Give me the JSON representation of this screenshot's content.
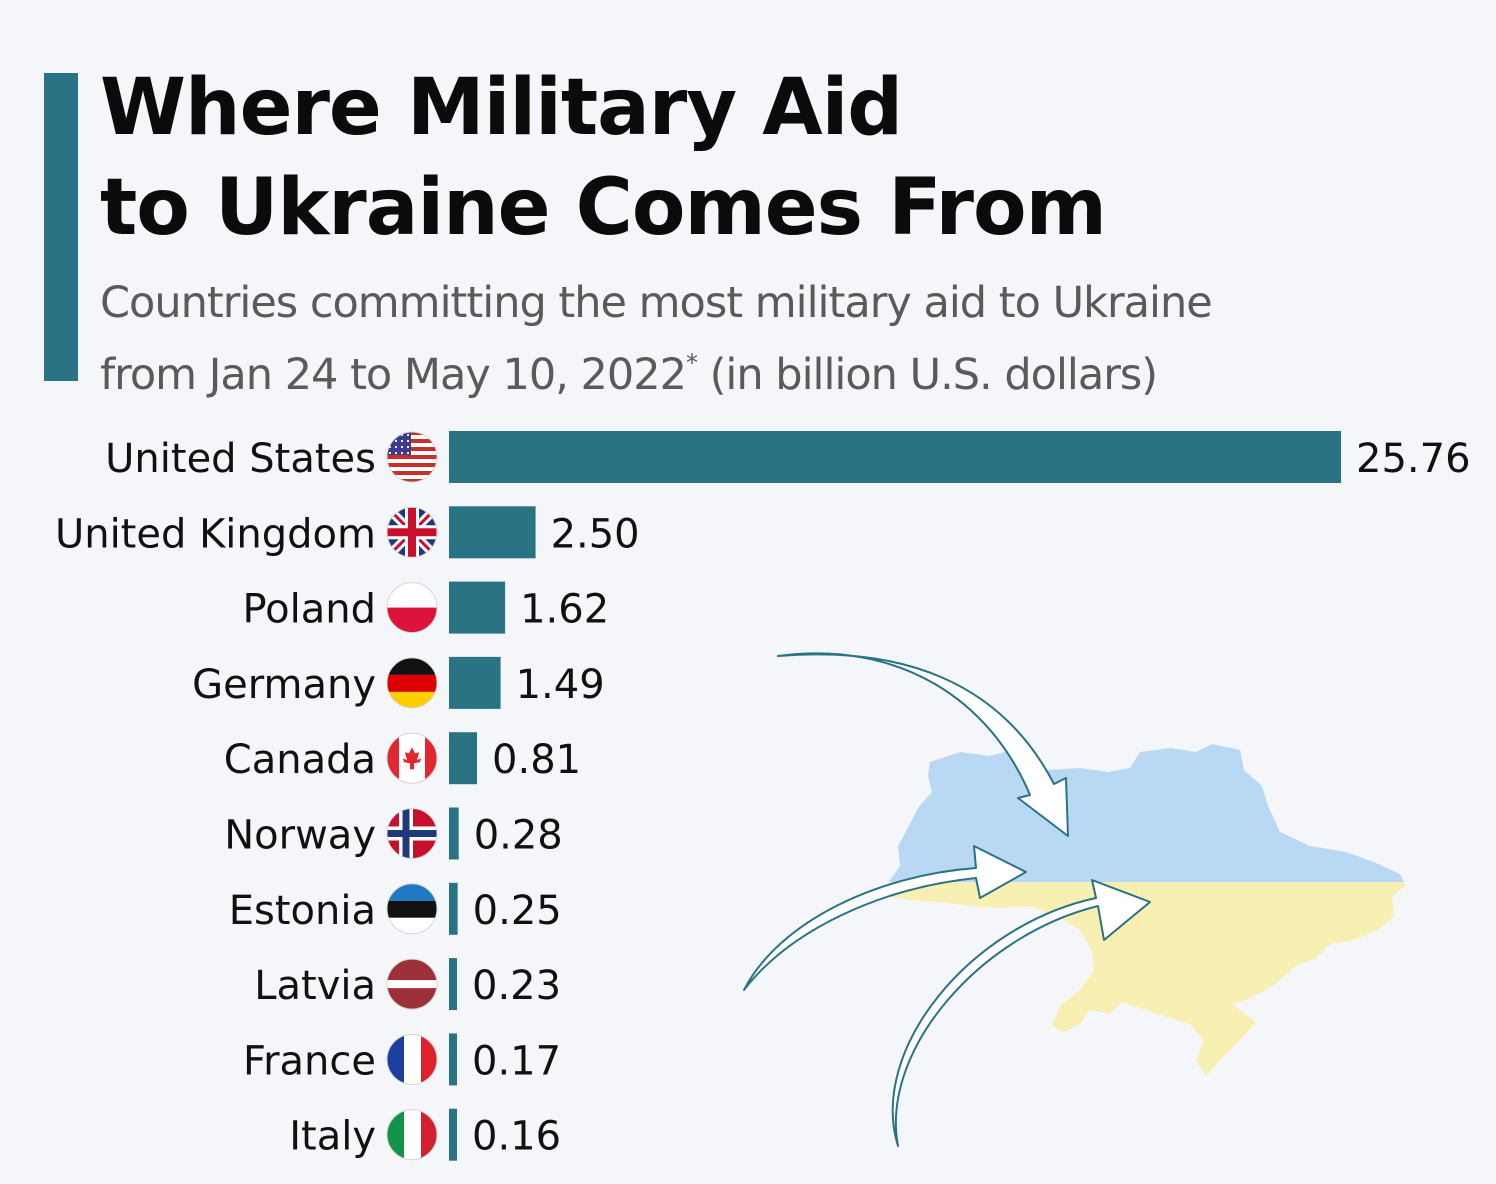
{
  "header": {
    "title_line1": "Where Military Aid",
    "title_line2": "to Ukraine Comes From",
    "subtitle_line1": "Countries committing the most military aid to Ukraine",
    "subtitle_line2": "from Jan 24 to May 10, 2022",
    "subtitle_note": "*",
    "subtitle_tail": " (in billion U.S. dollars)"
  },
  "colors": {
    "bar": "#2a7384",
    "ukraine_blue": "#b9d8f3",
    "ukraine_yellow": "#f7f0b2",
    "arrow": "#2a7384"
  },
  "chart_data": {
    "type": "bar",
    "orientation": "horizontal",
    "categories": [
      "United States",
      "United Kingdom",
      "Poland",
      "Germany",
      "Canada",
      "Norway",
      "Estonia",
      "Latvia",
      "France",
      "Italy"
    ],
    "values": [
      25.76,
      2.5,
      1.62,
      1.49,
      0.81,
      0.28,
      0.25,
      0.23,
      0.17,
      0.16
    ],
    "value_labels": [
      "25.76",
      "2.50",
      "1.62",
      "1.49",
      "0.81",
      "0.28",
      "0.25",
      "0.23",
      "0.17",
      "0.16"
    ],
    "flags": [
      "us-flag-icon",
      "uk-flag-icon",
      "poland-flag-icon",
      "germany-flag-icon",
      "canada-flag-icon",
      "norway-flag-icon",
      "estonia-flag-icon",
      "latvia-flag-icon",
      "france-flag-icon",
      "italy-flag-icon"
    ],
    "xlim": [
      0,
      25.76
    ],
    "grid": false,
    "legend": "none"
  }
}
